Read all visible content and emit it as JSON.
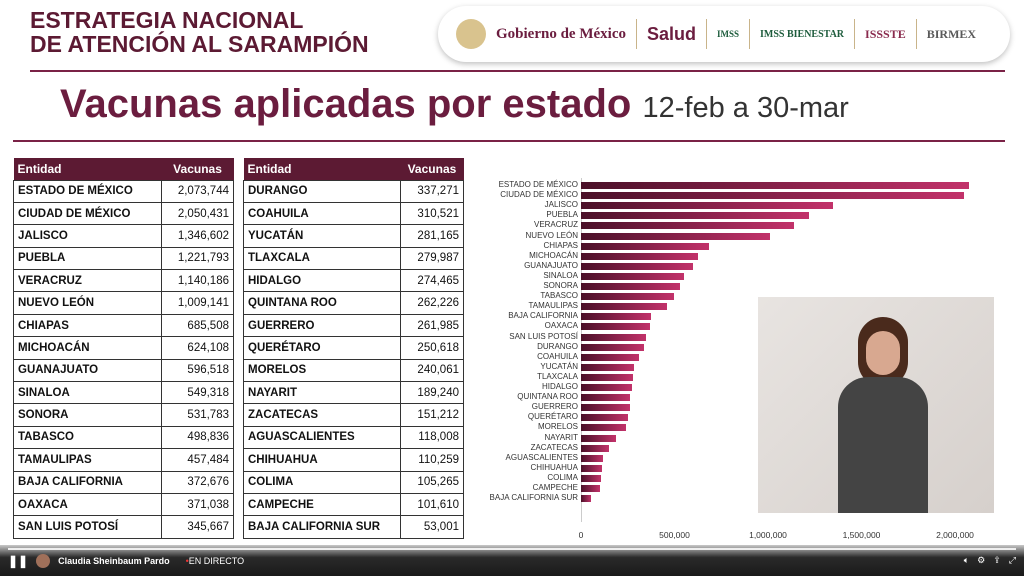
{
  "header": {
    "line1": "ESTRATEGIA NACIONAL",
    "line2": "DE ATENCIÓN AL SARAMPIÓN",
    "logos": [
      "Gobierno de México",
      "Salud",
      "IMSS",
      "IMSS BIENESTAR",
      "ISSSTE",
      "BIRMEX"
    ]
  },
  "title": "Vacunas aplicadas por estado",
  "date_range": "12-feb a 30-mar",
  "table": {
    "col1": "Entidad",
    "col2": "Vacunas",
    "left": [
      [
        "ESTADO DE MÉXICO",
        "2,073,744"
      ],
      [
        "CIUDAD DE MÉXICO",
        "2,050,431"
      ],
      [
        "JALISCO",
        "1,346,602"
      ],
      [
        "PUEBLA",
        "1,221,793"
      ],
      [
        "VERACRUZ",
        "1,140,186"
      ],
      [
        "NUEVO LEÓN",
        "1,009,141"
      ],
      [
        "CHIAPAS",
        "685,508"
      ],
      [
        "MICHOACÁN",
        "624,108"
      ],
      [
        "GUANAJUATO",
        "596,518"
      ],
      [
        "SINALOA",
        "549,318"
      ],
      [
        "SONORA",
        "531,783"
      ],
      [
        "TABASCO",
        "498,836"
      ],
      [
        "TAMAULIPAS",
        "457,484"
      ],
      [
        "BAJA CALIFORNIA",
        "372,676"
      ],
      [
        "OAXACA",
        "371,038"
      ],
      [
        "SAN LUIS POTOSÍ",
        "345,667"
      ]
    ],
    "right": [
      [
        "DURANGO",
        "337,271"
      ],
      [
        "COAHUILA",
        "310,521"
      ],
      [
        "YUCATÁN",
        "281,165"
      ],
      [
        "TLAXCALA",
        "279,987"
      ],
      [
        "HIDALGO",
        "274,465"
      ],
      [
        "QUINTANA ROO",
        "262,226"
      ],
      [
        "GUERRERO",
        "261,985"
      ],
      [
        "QUERÉTARO",
        "250,618"
      ],
      [
        "MORELOS",
        "240,061"
      ],
      [
        "NAYARIT",
        "189,240"
      ],
      [
        "ZACATECAS",
        "151,212"
      ],
      [
        "AGUASCALIENTES",
        "118,008"
      ],
      [
        "CHIHUAHUA",
        "110,259"
      ],
      [
        "COLIMA",
        "105,265"
      ],
      [
        "CAMPECHE",
        "101,610"
      ],
      [
        "BAJA CALIFORNIA SUR",
        "53,001"
      ]
    ]
  },
  "chart_data": {
    "type": "bar",
    "orientation": "horizontal",
    "title": "",
    "xlabel": "",
    "ylabel": "",
    "xlim": [
      0,
      2100000
    ],
    "xticks": [
      "0",
      "500,000",
      "1,000,000",
      "1,500,000",
      "2,000,000"
    ],
    "xtick_values": [
      0,
      500000,
      1000000,
      1500000,
      2000000
    ],
    "categories": [
      "ESTADO DE MÉXICO",
      "CIUDAD DE MÉXICO",
      "JALISCO",
      "PUEBLA",
      "VERACRUZ",
      "NUEVO LEÓN",
      "CHIAPAS",
      "MICHOACÁN",
      "GUANAJUATO",
      "SINALOA",
      "SONORA",
      "TABASCO",
      "TAMAULIPAS",
      "BAJA CALIFORNIA",
      "OAXACA",
      "SAN LUIS POTOSÍ",
      "DURANGO",
      "COAHUILA",
      "YUCATÁN",
      "TLAXCALA",
      "HIDALGO",
      "QUINTANA ROO",
      "GUERRERO",
      "QUERÉTARO",
      "MORELOS",
      "NAYARIT",
      "ZACATECAS",
      "AGUASCALIENTES",
      "CHIHUAHUA",
      "COLIMA",
      "CAMPECHE",
      "BAJA CALIFORNIA SUR"
    ],
    "values": [
      2073744,
      2050431,
      1346602,
      1221793,
      1140186,
      1009141,
      685508,
      624108,
      596518,
      549318,
      531783,
      498836,
      457484,
      372676,
      371038,
      345667,
      337271,
      310521,
      281165,
      279987,
      274465,
      262226,
      261985,
      250618,
      240061,
      189240,
      151212,
      118008,
      110259,
      105265,
      101610,
      53001
    ],
    "colors": {
      "start": "#4a1028",
      "end": "#c2326a"
    }
  },
  "player": {
    "channel": "Claudia Sheinbaum Pardo",
    "live": "EN DIRECTO"
  }
}
